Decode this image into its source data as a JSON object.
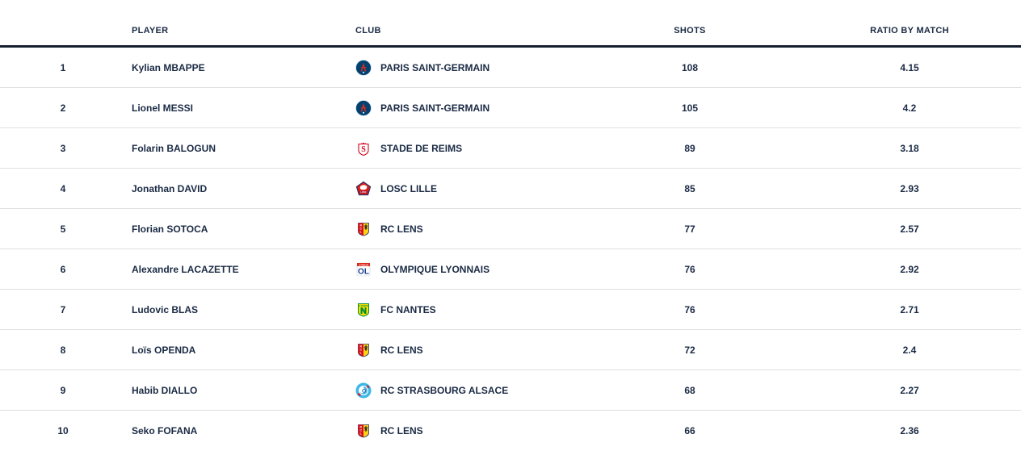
{
  "colors": {
    "text": "#1a2a44",
    "header_border": "#15202f",
    "row_divider": "#e0e0e0",
    "background": "#ffffff"
  },
  "table": {
    "headers": {
      "rank": "",
      "player": "PLAYER",
      "club": "CLUB",
      "shots": "SHOTS",
      "ratio": "RATIO BY MATCH"
    },
    "rows": [
      {
        "rank": "1",
        "player": "Kylian MBAPPE",
        "club": "PARIS SAINT-GERMAIN",
        "club_icon": "psg-crest-icon",
        "shots": "108",
        "ratio": "4.15"
      },
      {
        "rank": "2",
        "player": "Lionel MESSI",
        "club": "PARIS SAINT-GERMAIN",
        "club_icon": "psg-crest-icon",
        "shots": "105",
        "ratio": "4.2"
      },
      {
        "rank": "3",
        "player": "Folarin BALOGUN",
        "club": "STADE DE REIMS",
        "club_icon": "reims-crest-icon",
        "shots": "89",
        "ratio": "3.18"
      },
      {
        "rank": "4",
        "player": "Jonathan DAVID",
        "club": "LOSC LILLE",
        "club_icon": "lille-crest-icon",
        "shots": "85",
        "ratio": "2.93"
      },
      {
        "rank": "5",
        "player": "Florian SOTOCA",
        "club": "RC LENS",
        "club_icon": "lens-crest-icon",
        "shots": "77",
        "ratio": "2.57"
      },
      {
        "rank": "6",
        "player": "Alexandre LACAZETTE",
        "club": "OLYMPIQUE LYONNAIS",
        "club_icon": "lyon-crest-icon",
        "shots": "76",
        "ratio": "2.92"
      },
      {
        "rank": "7",
        "player": "Ludovic BLAS",
        "club": "FC NANTES",
        "club_icon": "nantes-crest-icon",
        "shots": "76",
        "ratio": "2.71"
      },
      {
        "rank": "8",
        "player": "Loïs OPENDA",
        "club": "RC LENS",
        "club_icon": "lens-crest-icon",
        "shots": "72",
        "ratio": "2.4"
      },
      {
        "rank": "9",
        "player": "Habib DIALLO",
        "club": "RC STRASBOURG ALSACE",
        "club_icon": "strasbourg-crest-icon",
        "shots": "68",
        "ratio": "2.27"
      },
      {
        "rank": "10",
        "player": "Seko FOFANA",
        "club": "RC LENS",
        "club_icon": "lens-crest-icon",
        "shots": "66",
        "ratio": "2.36"
      }
    ]
  }
}
